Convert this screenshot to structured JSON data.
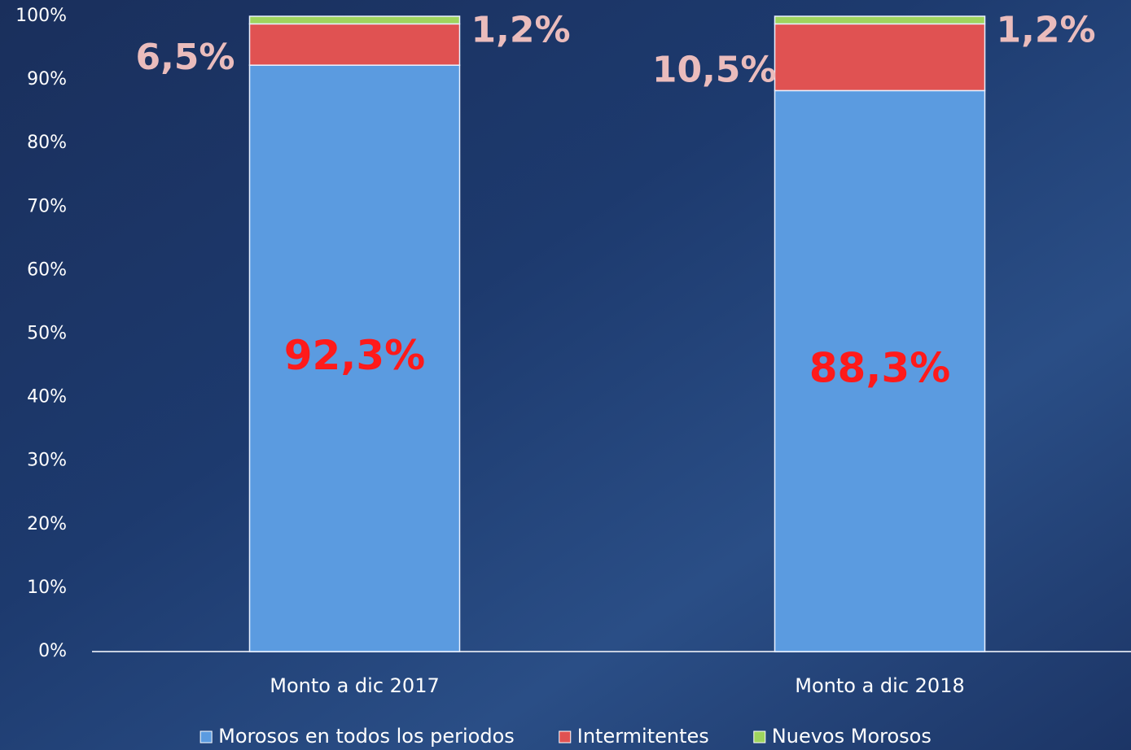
{
  "chart_data": {
    "type": "stacked-bar",
    "categories": [
      "Monto a dic 2017",
      "Monto a dic 2018"
    ],
    "series": [
      {
        "name": "Morosos en todos los periodos",
        "color": "#5b9be0",
        "values": [
          92.3,
          88.3
        ],
        "value_labels": [
          "92,3%",
          "88,3%"
        ]
      },
      {
        "name": "Intermitentes",
        "color": "#e05252",
        "values": [
          6.5,
          10.5
        ],
        "value_labels": [
          "6,5%",
          "10,5%"
        ]
      },
      {
        "name": "Nuevos Morosos",
        "color": "#9fd45e",
        "values": [
          1.2,
          1.2
        ],
        "value_labels": [
          "1,2%",
          "1,2%"
        ]
      }
    ],
    "ylim": [
      0,
      100
    ],
    "yticks": [
      {
        "value": 0,
        "label": "0%"
      },
      {
        "value": 10,
        "label": "10%"
      },
      {
        "value": 20,
        "label": "20%"
      },
      {
        "value": 30,
        "label": "30%"
      },
      {
        "value": 40,
        "label": "40%"
      },
      {
        "value": 50,
        "label": "50%"
      },
      {
        "value": 60,
        "label": "60%"
      },
      {
        "value": 70,
        "label": "70%"
      },
      {
        "value": 80,
        "label": "80%"
      },
      {
        "value": 90,
        "label": "90%"
      },
      {
        "value": 100,
        "label": "100%"
      }
    ],
    "legend": "bottom"
  }
}
